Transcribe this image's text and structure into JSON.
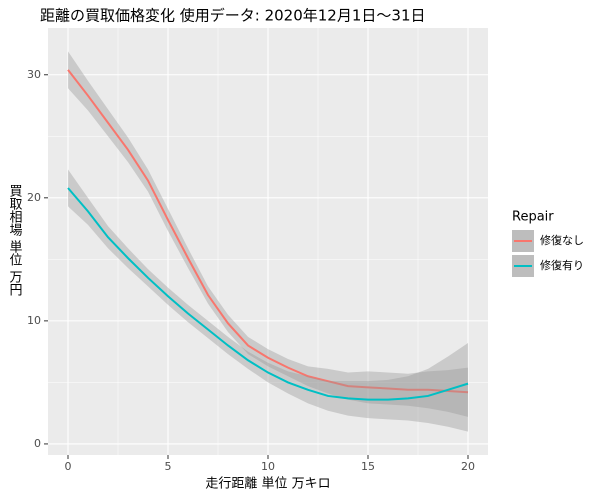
{
  "chart_data": {
    "type": "line",
    "title": "距離の買取価格変化 使用データ: 2020年12月1日～31日",
    "x_label": "走行距離 単位 万キロ",
    "y_label": "買取相場 単位 万円",
    "legend_title": "Repair",
    "x": [
      0,
      1,
      2,
      3,
      4,
      5,
      6,
      7,
      8,
      9,
      10,
      11,
      12,
      13,
      14,
      15,
      16,
      17,
      18,
      19,
      20
    ],
    "series": [
      {
        "name": "修復なし",
        "color": "#F8766D",
        "values": [
          30.4,
          28.3,
          26.1,
          23.9,
          21.4,
          18.2,
          15.1,
          12.1,
          9.8,
          8.0,
          7.0,
          6.2,
          5.5,
          5.1,
          4.7,
          4.6,
          4.5,
          4.4,
          4.4,
          4.3,
          4.2
        ],
        "lower": [
          28.9,
          27.1,
          25.0,
          22.9,
          20.5,
          17.3,
          14.3,
          11.4,
          9.1,
          7.3,
          6.3,
          5.5,
          4.7,
          4.1,
          3.6,
          3.3,
          3.2,
          3.1,
          2.9,
          2.6,
          2.2
        ],
        "upper": [
          31.9,
          29.5,
          27.2,
          24.9,
          22.3,
          19.1,
          15.9,
          12.8,
          10.5,
          8.7,
          7.7,
          6.9,
          6.3,
          6.1,
          5.8,
          5.9,
          5.8,
          5.7,
          5.9,
          6.0,
          6.2
        ]
      },
      {
        "name": "修復有り",
        "color": "#00BFC4",
        "values": [
          20.8,
          18.9,
          16.8,
          15.1,
          13.5,
          12.0,
          10.6,
          9.3,
          8.0,
          6.8,
          5.8,
          5.0,
          4.4,
          3.9,
          3.7,
          3.6,
          3.6,
          3.7,
          3.9,
          4.4,
          4.9
        ],
        "lower": [
          19.3,
          17.8,
          15.9,
          14.3,
          12.8,
          11.3,
          9.9,
          8.6,
          7.3,
          6.1,
          5.0,
          4.1,
          3.3,
          2.7,
          2.3,
          2.1,
          2.0,
          1.9,
          1.7,
          1.4,
          1.0
        ],
        "upper": [
          22.3,
          20.0,
          17.7,
          15.9,
          14.2,
          12.7,
          11.3,
          10.0,
          8.7,
          7.5,
          6.6,
          5.9,
          5.5,
          5.1,
          5.1,
          5.1,
          5.2,
          5.5,
          6.1,
          7.1,
          8.2
        ]
      }
    ],
    "xlim": [
      -1,
      21
    ],
    "xticks": [
      0,
      5,
      10,
      15,
      20
    ],
    "ylim": [
      -0.9,
      33.8
    ],
    "yticks": [
      0,
      10,
      20,
      30
    ],
    "grid": true
  }
}
